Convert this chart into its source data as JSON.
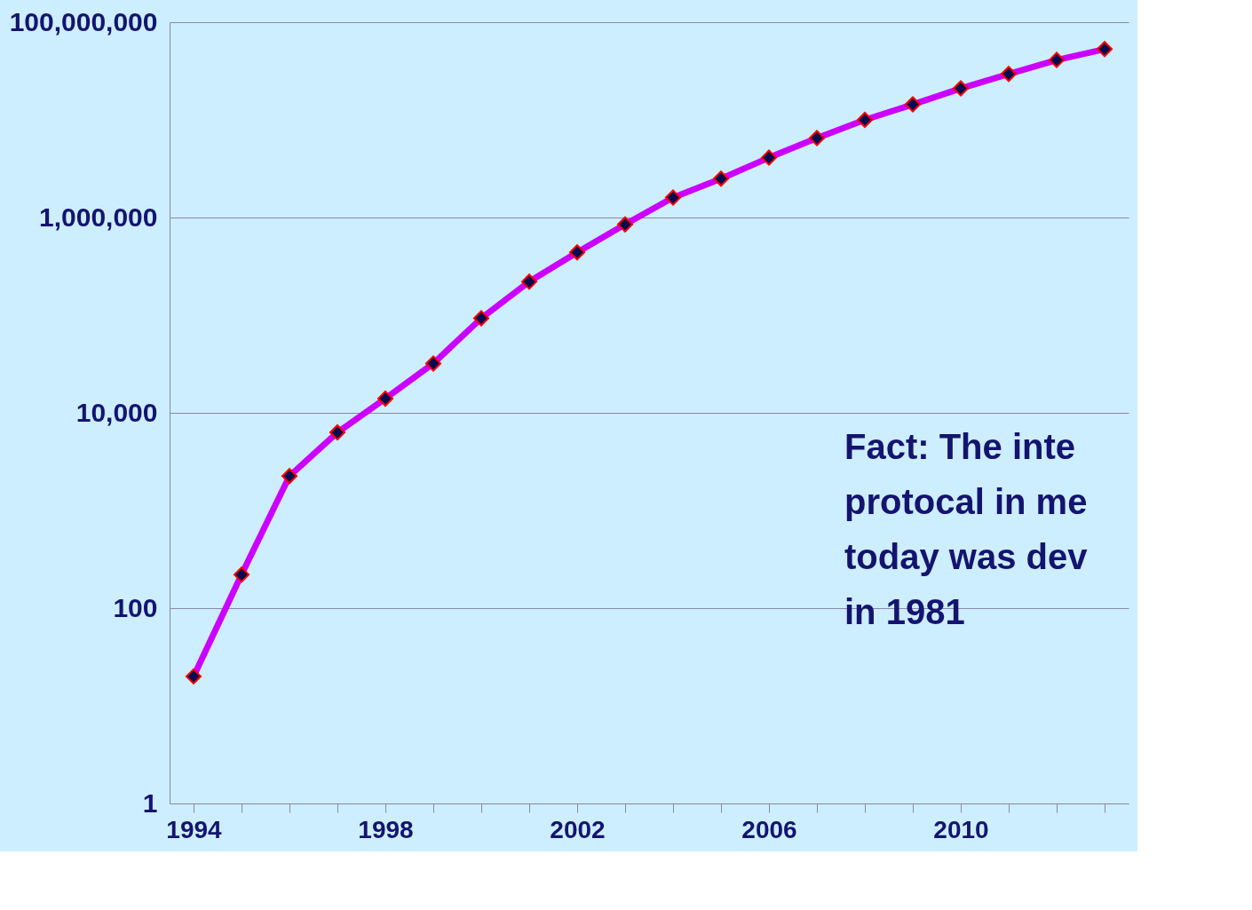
{
  "chart_data": {
    "type": "line",
    "categories": [
      "1994",
      null,
      null,
      null,
      "1998",
      null,
      null,
      null,
      "2002",
      null,
      null,
      null,
      "2006",
      null,
      null,
      null,
      "2010",
      null,
      null,
      null
    ],
    "series": [
      {
        "color": "#cc00ff",
        "values": [
          20,
          220,
          2250,
          6300,
          14000,
          32000,
          93000,
          220000,
          440000,
          850000,
          1600000,
          2500000,
          4100000,
          6500000,
          10000000,
          14400000,
          21000000,
          29500000,
          41000000,
          53000000
        ]
      }
    ],
    "log": true,
    "ylim": [
      1,
      100000000
    ],
    "yticks": [
      {
        "value": 1,
        "label": "1"
      },
      {
        "value": 100,
        "label": "100"
      },
      {
        "value": 10000,
        "label": "10,000"
      },
      {
        "value": 1000000,
        "label": "1,000,000"
      },
      {
        "value": 100000000,
        "label": "100,000,000"
      }
    ],
    "grid": "y",
    "marker": "diamond",
    "line_style": "solid",
    "annotations": [
      "Fact:  The inte\nprotocal in me\ntoday was dev\nin 1981"
    ]
  }
}
